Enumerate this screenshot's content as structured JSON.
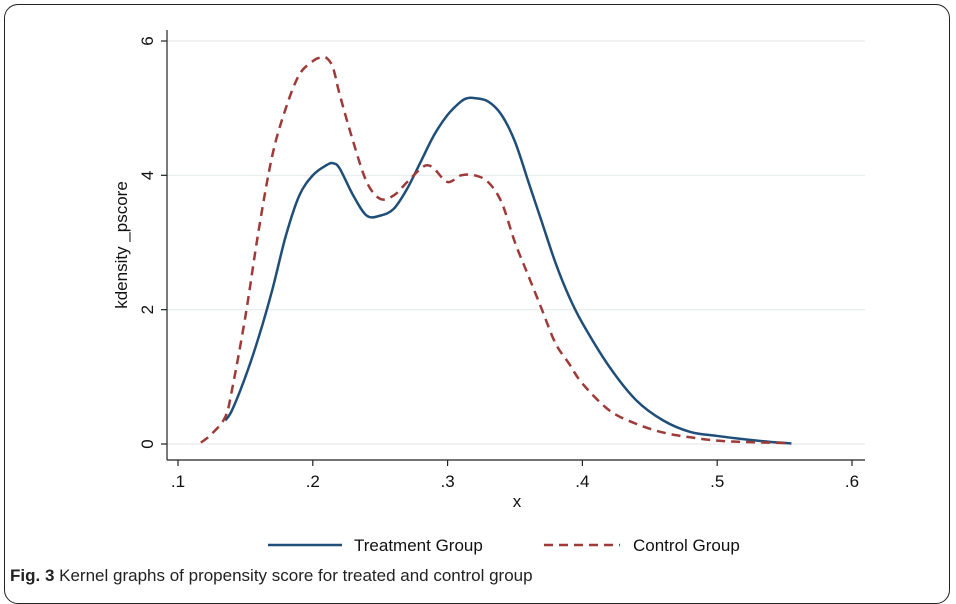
{
  "caption": {
    "label": "Fig. 3",
    "text": "Kernel graphs of propensity score for treated and control group"
  },
  "chart_data": {
    "type": "line",
    "title": "",
    "xlabel": "x",
    "ylabel": "kdensity _pscore",
    "xlim": [
      0.1,
      0.6
    ],
    "ylim": [
      0,
      6
    ],
    "xticks": [
      0.1,
      0.2,
      0.3,
      0.4,
      0.5,
      0.6
    ],
    "xtick_labels": [
      ".1",
      ".2",
      ".3",
      ".4",
      ".5",
      ".6"
    ],
    "yticks": [
      0,
      2,
      4,
      6
    ],
    "ytick_labels": [
      "0",
      "2",
      "4",
      "6"
    ],
    "grid": true,
    "legend_position": "bottom",
    "series": [
      {
        "name": "Treatment Group",
        "color": "#1f4e79",
        "style": "solid",
        "x": [
          0.135,
          0.14,
          0.15,
          0.16,
          0.17,
          0.18,
          0.19,
          0.2,
          0.21,
          0.215,
          0.22,
          0.23,
          0.24,
          0.25,
          0.26,
          0.27,
          0.28,
          0.29,
          0.3,
          0.31,
          0.315,
          0.32,
          0.33,
          0.34,
          0.35,
          0.36,
          0.37,
          0.38,
          0.39,
          0.4,
          0.42,
          0.44,
          0.46,
          0.48,
          0.5,
          0.52,
          0.54,
          0.555
        ],
        "y": [
          0.35,
          0.5,
          1.0,
          1.6,
          2.3,
          3.1,
          3.7,
          4.0,
          4.15,
          4.18,
          4.1,
          3.7,
          3.4,
          3.4,
          3.5,
          3.8,
          4.2,
          4.6,
          4.9,
          5.1,
          5.15,
          5.15,
          5.1,
          4.9,
          4.5,
          3.9,
          3.3,
          2.7,
          2.2,
          1.8,
          1.15,
          0.65,
          0.35,
          0.18,
          0.12,
          0.07,
          0.03,
          0.01
        ]
      },
      {
        "name": "Control Group",
        "color": "#9e3a38",
        "style": "dashed",
        "x": [
          0.117,
          0.125,
          0.135,
          0.14,
          0.15,
          0.16,
          0.17,
          0.18,
          0.19,
          0.2,
          0.205,
          0.21,
          0.215,
          0.22,
          0.23,
          0.24,
          0.25,
          0.26,
          0.27,
          0.28,
          0.285,
          0.29,
          0.3,
          0.31,
          0.32,
          0.33,
          0.34,
          0.35,
          0.36,
          0.37,
          0.38,
          0.39,
          0.4,
          0.42,
          0.44,
          0.46,
          0.48,
          0.5,
          0.52,
          0.54,
          0.555
        ],
        "y": [
          0.02,
          0.15,
          0.4,
          0.8,
          1.9,
          3.2,
          4.3,
          5.0,
          5.5,
          5.7,
          5.75,
          5.75,
          5.6,
          5.2,
          4.5,
          3.9,
          3.65,
          3.7,
          3.9,
          4.1,
          4.15,
          4.1,
          3.9,
          4.0,
          4.0,
          3.9,
          3.6,
          3.0,
          2.5,
          2.0,
          1.5,
          1.2,
          0.9,
          0.5,
          0.3,
          0.17,
          0.1,
          0.05,
          0.03,
          0.02,
          0.01
        ]
      }
    ]
  }
}
